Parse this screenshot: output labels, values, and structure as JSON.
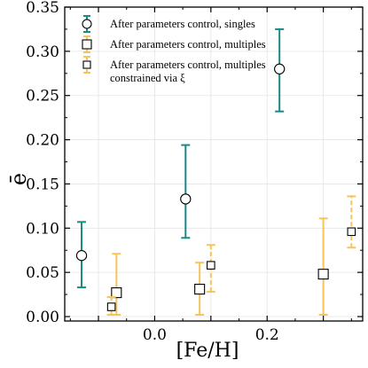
{
  "chart_data": {
    "type": "scatter",
    "xlabel": "[Fe/H]",
    "ylabel": "ē",
    "xlim": [
      -0.16,
      0.37
    ],
    "ylim": [
      -0.005,
      0.35
    ],
    "grid": true,
    "legend_placement": "top-left",
    "xticks": [
      -0.1,
      0.0,
      0.1,
      0.2,
      0.3
    ],
    "xtick_labels": [
      "",
      "0.0",
      "",
      "0.2",
      ""
    ],
    "yticks": [
      0.0,
      0.05,
      0.1,
      0.15,
      0.2,
      0.25,
      0.3,
      0.35
    ],
    "ytick_labels": [
      "0.00",
      "0.05",
      "0.10",
      "0.15",
      "0.20",
      "0.25",
      "0.30",
      "0.35"
    ],
    "series": [
      {
        "name": "After parameters control, singles",
        "marker": "circle",
        "linestyle": "solid",
        "color": "#1a8a86",
        "points": [
          {
            "x": -0.13,
            "y": 0.069,
            "ylow": 0.033,
            "yhigh": 0.107
          },
          {
            "x": 0.055,
            "y": 0.133,
            "ylow": 0.089,
            "yhigh": 0.194
          },
          {
            "x": 0.222,
            "y": 0.28,
            "ylow": 0.232,
            "yhigh": 0.325
          }
        ]
      },
      {
        "name": "After parameters control, multiples",
        "marker": "square",
        "linestyle": "solid",
        "color": "#f7c35a",
        "points": [
          {
            "x": -0.068,
            "y": 0.027,
            "ylow": 0.002,
            "yhigh": 0.071
          },
          {
            "x": 0.08,
            "y": 0.031,
            "ylow": 0.002,
            "yhigh": 0.061
          },
          {
            "x": 0.3,
            "y": 0.048,
            "ylow": 0.002,
            "yhigh": 0.111
          }
        ]
      },
      {
        "name": "After parameters control, multiples constrained via ξ",
        "name_lines": [
          "After parameters control, multiples",
          "constrained via ξ"
        ],
        "marker": "square-small",
        "linestyle": "dashed",
        "color": "#f7c35a",
        "points": [
          {
            "x": -0.077,
            "y": 0.011,
            "ylow": 0.002,
            "yhigh": 0.022
          },
          {
            "x": 0.1,
            "y": 0.058,
            "ylow": 0.028,
            "yhigh": 0.081
          },
          {
            "x": 0.35,
            "y": 0.096,
            "ylow": 0.078,
            "yhigh": 0.136
          }
        ]
      }
    ]
  }
}
